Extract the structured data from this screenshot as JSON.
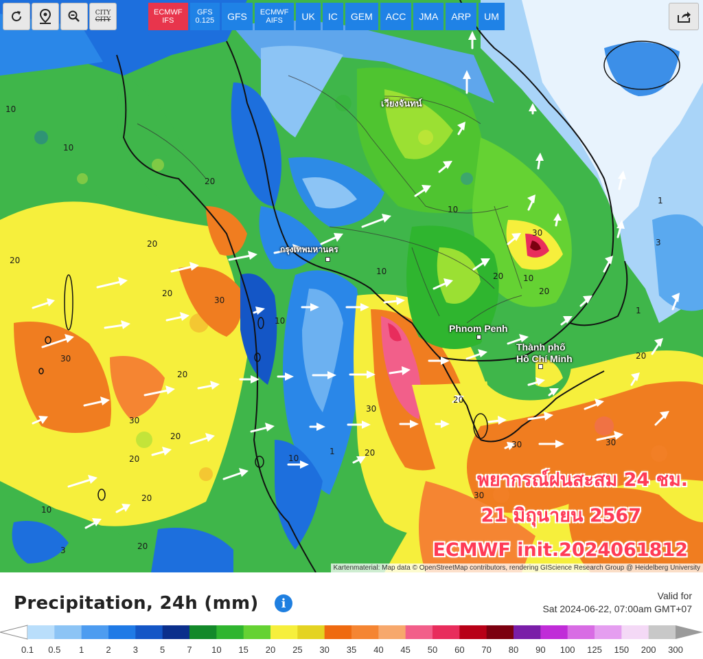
{
  "toolbar": {
    "city_top": "CITY",
    "city_bottom": "CITY"
  },
  "models": [
    {
      "line1": "ECMWF",
      "line2": "IFS",
      "active": true
    },
    {
      "line1": "GFS",
      "line2": "0.125",
      "active": false
    },
    {
      "line1": "GFS",
      "line2": "",
      "active": false
    },
    {
      "line1": "ECMWF",
      "line2": "AIFS",
      "active": false
    },
    {
      "line1": "UK",
      "line2": "",
      "active": false
    },
    {
      "line1": "IC",
      "line2": "",
      "active": false
    },
    {
      "line1": "GEM",
      "line2": "",
      "active": false
    },
    {
      "line1": "ACC",
      "line2": "",
      "active": false
    },
    {
      "line1": "JMA",
      "line2": "",
      "active": false
    },
    {
      "line1": "ARP",
      "line2": "",
      "active": false
    },
    {
      "line1": "UM",
      "line2": "",
      "active": false
    }
  ],
  "map": {
    "cities": {
      "phnom_penh": "Phnom Penh",
      "hcmc_line1": "Thành phố",
      "hcmc_line2": "Hồ Chí Minh",
      "vientiane": "เวียงจันทน์",
      "bangkok": "กรุงเทพมหานคร"
    },
    "overlay": {
      "line1": "พยากรณ์ฝนสะสม 24 ชม.",
      "line2": "21 มิถุนายน 2567",
      "line3": "ECMWF init.2024061812"
    },
    "attribution": "Kartenmaterial: Map data © OpenStreetMap contributors, rendering GIScience Research Group @ Heidelberg University",
    "contour_labels": [
      "10",
      "10",
      "20",
      "20",
      "20",
      "30",
      "20",
      "10",
      "10",
      "30",
      "20",
      "20",
      "30",
      "20",
      "20",
      "10",
      "1",
      "10",
      "30",
      "30",
      "20",
      "30",
      "20",
      "1",
      "3",
      "1",
      "10",
      "20",
      "30",
      "30",
      "20",
      "10",
      "20",
      "3",
      "20"
    ]
  },
  "panel": {
    "title": "Precipitation, 24h (mm)",
    "valid_label": "Valid for",
    "valid_date": "Sat 2024-06-22, 07:00am GMT+07"
  },
  "legend": {
    "labels": [
      "0.1",
      "0.5",
      "1",
      "2",
      "3",
      "5",
      "7",
      "10",
      "15",
      "20",
      "25",
      "30",
      "35",
      "40",
      "45",
      "50",
      "60",
      "70",
      "80",
      "90",
      "100",
      "125",
      "150",
      "200",
      "300"
    ],
    "colors": [
      "#b9defb",
      "#8cc4f5",
      "#4d9cf0",
      "#1f7ae6",
      "#1456c6",
      "#0b2f8c",
      "#13892a",
      "#2fb52f",
      "#65d233",
      "#f6ef3c",
      "#e4d322",
      "#ef6a10",
      "#f58532",
      "#f7a86c",
      "#f25f8a",
      "#e82d5c",
      "#b80017",
      "#7c0010",
      "#7a1ea8",
      "#c02cd8",
      "#d86ce4",
      "#e59ef0",
      "#f4d9f6",
      "#c8c8c8"
    ]
  }
}
